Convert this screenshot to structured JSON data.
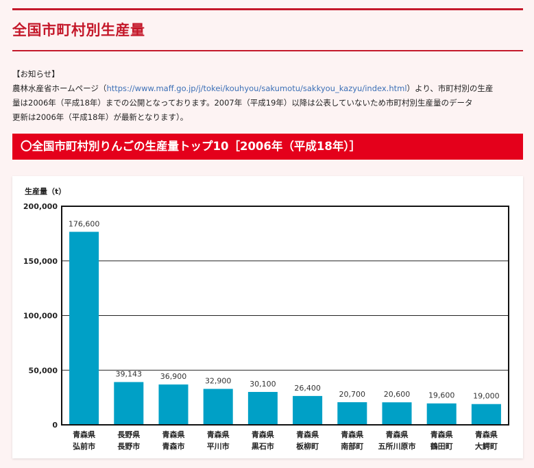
{
  "header": {
    "title": "全国市町村別生産量"
  },
  "notice": {
    "heading": "【お知らせ】",
    "line1_before": "農林水産省ホームページ（",
    "url": "https://www.maff.go.jp/j/tokei/kouhyou/sakumotu/sakkyou_kazyu/index.html",
    "line1_after": "）より、市町村別の生産",
    "line2": "量は2006年（平成18年）までの公開となっております。2007年（平成19年）以降は公表していないため市町村別生産量のデータ",
    "line3": "更新は2006年（平成18年）が最新となります）。"
  },
  "section": {
    "title": "〇全国市町村別りんごの生産量トップ10［2006年（平成18年）］"
  },
  "colors": {
    "accent": "#c4182a",
    "section_bg": "#e4001b",
    "bar": "#00a0c6",
    "link": "#3b6fb6"
  },
  "chart_data": {
    "type": "bar",
    "ylabel": "生産量（t）",
    "ylim": [
      0,
      200000
    ],
    "yticks": [
      0,
      50000,
      100000,
      150000,
      200000
    ],
    "ytick_labels": [
      "0",
      "50,000",
      "100,000",
      "150,000",
      "200,000"
    ],
    "grid": true,
    "categories": [
      {
        "pref": "青森県",
        "city": "弘前市"
      },
      {
        "pref": "長野県",
        "city": "長野市"
      },
      {
        "pref": "青森県",
        "city": "青森市"
      },
      {
        "pref": "青森県",
        "city": "平川市"
      },
      {
        "pref": "青森県",
        "city": "黒石市"
      },
      {
        "pref": "青森県",
        "city": "板柳町"
      },
      {
        "pref": "青森県",
        "city": "南部町"
      },
      {
        "pref": "青森県",
        "city": "五所川原市"
      },
      {
        "pref": "青森県",
        "city": "鶴田町"
      },
      {
        "pref": "青森県",
        "city": "大鰐町"
      }
    ],
    "values": [
      176600,
      39143,
      36900,
      32900,
      30100,
      26400,
      20700,
      20600,
      19600,
      19000
    ],
    "value_labels": [
      "176,600",
      "39,143",
      "36,900",
      "32,900",
      "30,100",
      "26,400",
      "20,700",
      "20,600",
      "19,600",
      "19,000"
    ]
  }
}
